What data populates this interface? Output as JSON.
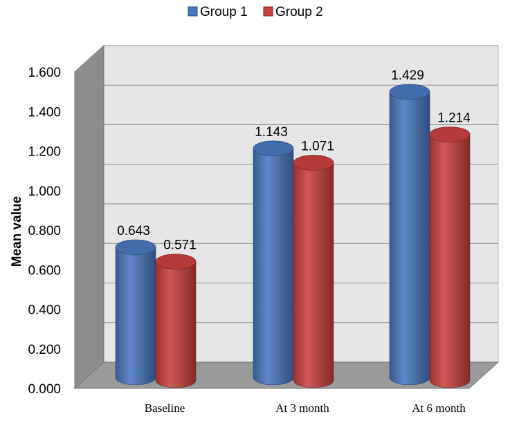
{
  "chart_data": {
    "type": "bar",
    "categories": [
      "Baseline",
      "At 3 month",
      "At 6 month"
    ],
    "series": [
      {
        "name": "Group 1",
        "values": [
          0.643,
          1.143,
          1.429
        ],
        "labels": [
          "0.643",
          "1.143",
          "1.429"
        ],
        "color": "#4a78c0"
      },
      {
        "name": "Group 2",
        "values": [
          0.571,
          1.071,
          1.214
        ],
        "labels": [
          "0.571",
          "1.071",
          "1.214"
        ],
        "color": "#c8413f"
      }
    ],
    "title": "",
    "xlabel": "",
    "ylabel": "Mean value",
    "ylim": [
      0,
      1.6
    ],
    "yticks": [
      "0.000",
      "0.200",
      "0.400",
      "0.600",
      "0.800",
      "1.000",
      "1.200",
      "1.400",
      "1.600"
    ],
    "legend_position": "top-center",
    "grid": true,
    "style": "3d-cylinder"
  }
}
